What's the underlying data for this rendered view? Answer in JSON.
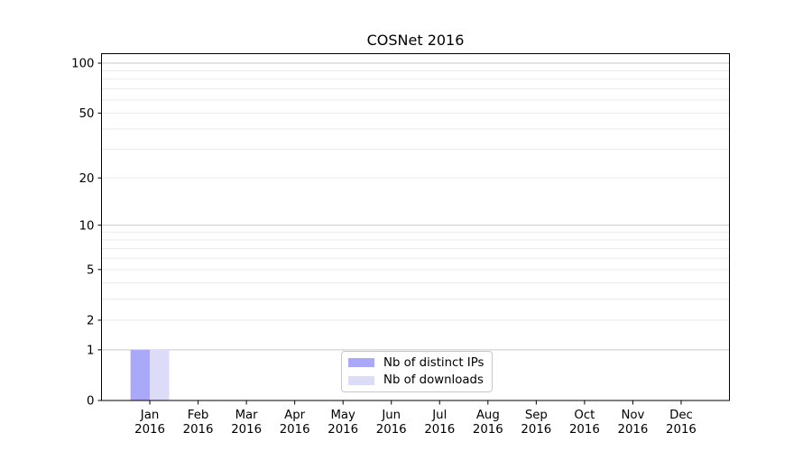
{
  "window": {
    "background": "#ffffff"
  },
  "chart_data": {
    "type": "bar",
    "title": "COSNet 2016",
    "categories": [
      {
        "month": "Jan",
        "year": "2016"
      },
      {
        "month": "Feb",
        "year": "2016"
      },
      {
        "month": "Mar",
        "year": "2016"
      },
      {
        "month": "Apr",
        "year": "2016"
      },
      {
        "month": "May",
        "year": "2016"
      },
      {
        "month": "Jun",
        "year": "2016"
      },
      {
        "month": "Jul",
        "year": "2016"
      },
      {
        "month": "Aug",
        "year": "2016"
      },
      {
        "month": "Sep",
        "year": "2016"
      },
      {
        "month": "Oct",
        "year": "2016"
      },
      {
        "month": "Nov",
        "year": "2016"
      },
      {
        "month": "Dec",
        "year": "2016"
      }
    ],
    "series": [
      {
        "name": "Nb of distinct IPs",
        "color": "#aaa9f9",
        "values": [
          1,
          0,
          0,
          0,
          0,
          0,
          0,
          0,
          0,
          0,
          0,
          0
        ]
      },
      {
        "name": "Nb of downloads",
        "color": "#dcdcf9",
        "values": [
          1,
          0,
          0,
          0,
          0,
          0,
          0,
          0,
          0,
          0,
          0,
          0
        ]
      }
    ],
    "xlabel": "",
    "ylabel": "",
    "y_scale": "log1p",
    "ylim": [
      0,
      105
    ],
    "y_ticks": [
      0,
      1,
      2,
      5,
      10,
      20,
      50,
      100
    ],
    "y_major_gridlines": [
      1,
      10,
      100
    ],
    "y_minor_gridlines": [
      2,
      3,
      4,
      5,
      6,
      7,
      8,
      9,
      20,
      30,
      40,
      50,
      60,
      70,
      80,
      90
    ],
    "grid": "horizontal",
    "legend_position": "lower center"
  },
  "colors": {
    "major_grid": "#c9c9c9",
    "minor_grid": "#ebebeb",
    "spine": "#000000",
    "tick": "#000000",
    "text": "#000000"
  }
}
